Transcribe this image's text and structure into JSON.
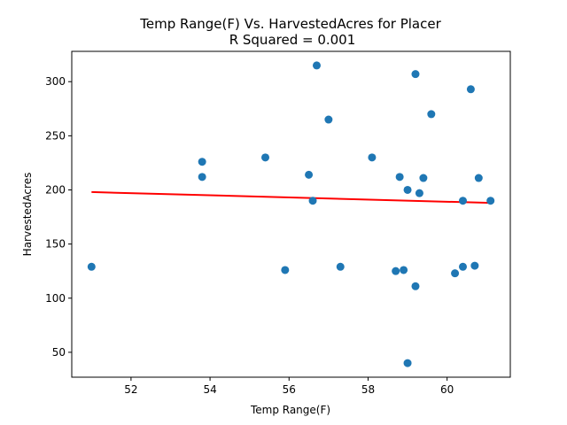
{
  "chart_data": {
    "type": "scatter",
    "title": "Temp Range(F) Vs. HarvestedAcres for Placer",
    "subtitle": "R Squared =  0.001",
    "xlabel": "Temp Range(F)",
    "ylabel": "HarvestedAcres",
    "xlim": [
      50.5,
      61.6
    ],
    "ylim": [
      27,
      328
    ],
    "xticks": [
      52,
      54,
      56,
      58,
      60
    ],
    "yticks": [
      50,
      100,
      150,
      200,
      250,
      300
    ],
    "grid": false,
    "colors": {
      "points": "#1f77b4",
      "line": "#ff0000"
    },
    "series": [
      {
        "name": "HarvestedAcres",
        "x": [
          51.0,
          53.8,
          53.8,
          55.4,
          55.9,
          56.5,
          56.6,
          56.7,
          57.0,
          57.3,
          58.1,
          58.7,
          58.8,
          58.9,
          59.0,
          59.0,
          59.2,
          59.2,
          59.3,
          59.4,
          59.6,
          60.2,
          60.4,
          60.4,
          60.6,
          60.7,
          60.8,
          61.1
        ],
        "y": [
          129,
          226,
          212,
          230,
          126,
          214,
          190,
          315,
          265,
          129,
          230,
          125,
          212,
          126,
          40,
          200,
          307,
          111,
          197,
          211,
          270,
          123,
          129,
          190,
          293,
          130,
          211,
          190
        ]
      }
    ],
    "fit_line": {
      "x": [
        51.0,
        61.1
      ],
      "y": [
        198,
        188
      ]
    }
  }
}
